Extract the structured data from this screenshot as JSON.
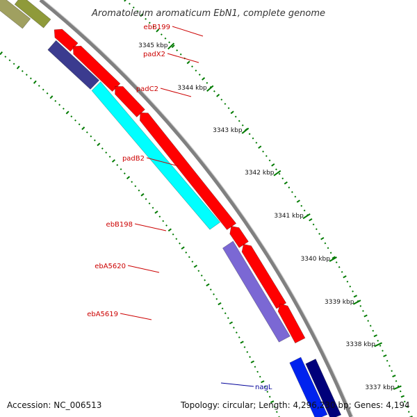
{
  "header": {
    "title": "Aromatoleum aromaticum EbN1, complete genome"
  },
  "footer": {
    "accession": "Accession: NC_006513",
    "topology": "Topology: circular; Length: 4,296,230 bp; Genes: 4,194"
  },
  "colors": {
    "red_cds": "#ff0000",
    "cyan_cds": "#00ffff",
    "navy_cds": "#3b3b8f",
    "lavender_cds": "#7b68d4",
    "blue_cds": "#0022ee",
    "darkblue_cds": "#00007a",
    "olive_cds": "#8f9a3a",
    "tick_green": "#007a00",
    "label_red": "#cc0000",
    "label_blue": "#000099",
    "backbone": "#808080"
  },
  "scale": {
    "unit": "kbp",
    "ticks": [
      "3345 kbp",
      "3344 kbp",
      "3343 kbp",
      "3342 kbp",
      "3341 kbp",
      "3340 kbp",
      "3339 kbp",
      "3338 kbp",
      "3337 kbp"
    ]
  },
  "genes": [
    {
      "name": "ebB199",
      "strand": "reverse",
      "color": "label_red"
    },
    {
      "name": "padX2",
      "strand": "reverse",
      "color": "label_red"
    },
    {
      "name": "padC2",
      "strand": "reverse",
      "color": "label_red"
    },
    {
      "name": "padB2",
      "strand": "reverse",
      "color": "label_red"
    },
    {
      "name": "ebB198",
      "strand": "reverse",
      "color": "label_red"
    },
    {
      "name": "ebA5620",
      "strand": "reverse",
      "color": "label_red"
    },
    {
      "name": "ebA5619",
      "strand": "reverse",
      "color": "label_red"
    },
    {
      "name": "nagL",
      "strand": "forward",
      "color": "label_blue"
    }
  ]
}
